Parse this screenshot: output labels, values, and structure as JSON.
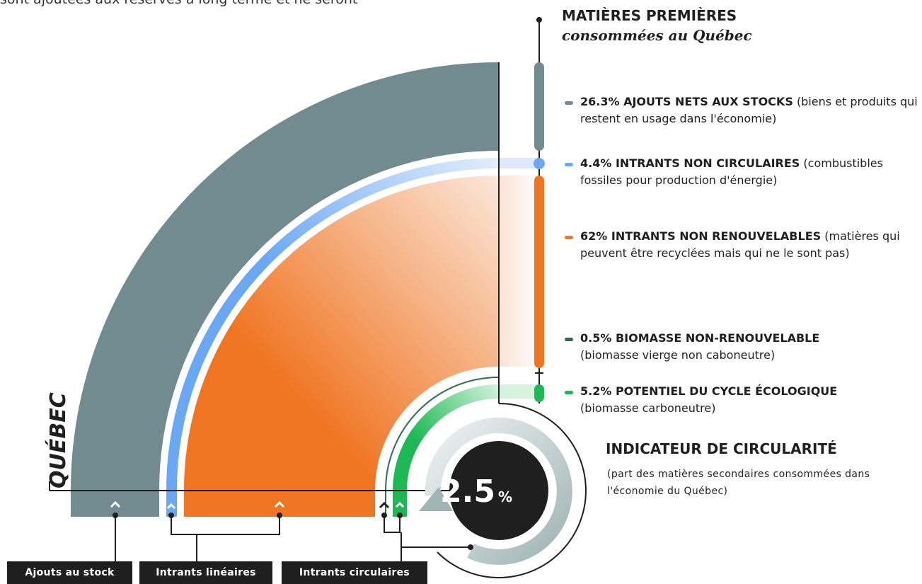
{
  "intro_fragment": "sont ajoutées aux réserves à long terme et ne seront",
  "header": {
    "title": "MATIÈRES PREMIÈRES",
    "subtitle": "consommées au Québec"
  },
  "legend": [
    {
      "label": "26.3% AJOUTS NETS AUX STOCKS",
      "description": "(biens et produits qui restent en usage dans l'économie)"
    },
    {
      "label": "4.4% INTRANTS NON CIRCULAIRES",
      "description": "(combustibles fossiles pour production d'énergie)"
    },
    {
      "label": "62% INTRANTS NON RENOUVELABLES",
      "description": "(matières qui peuvent être recyclées mais qui ne le sont pas)"
    },
    {
      "label": "0.5% BIOMASSE NON-RENOUVELABLE",
      "description": "(biomasse vierge non caboneutre)"
    },
    {
      "label": "5.2% POTENTIEL DU CYCLE ÉCOLOGIQUE",
      "description": "(biomasse carboneutre)"
    }
  ],
  "indicator": {
    "value": "2.5",
    "unit": "%",
    "title": "INDICATEUR DE CIRCULARITÉ",
    "description": "(part des matières secondaires consommées dans l'économie du Québec)"
  },
  "region_label": "QUÉBEC",
  "categories": [
    "Ajouts au stock",
    "Intrants linéaires",
    "Intrants circulaires"
  ]
}
